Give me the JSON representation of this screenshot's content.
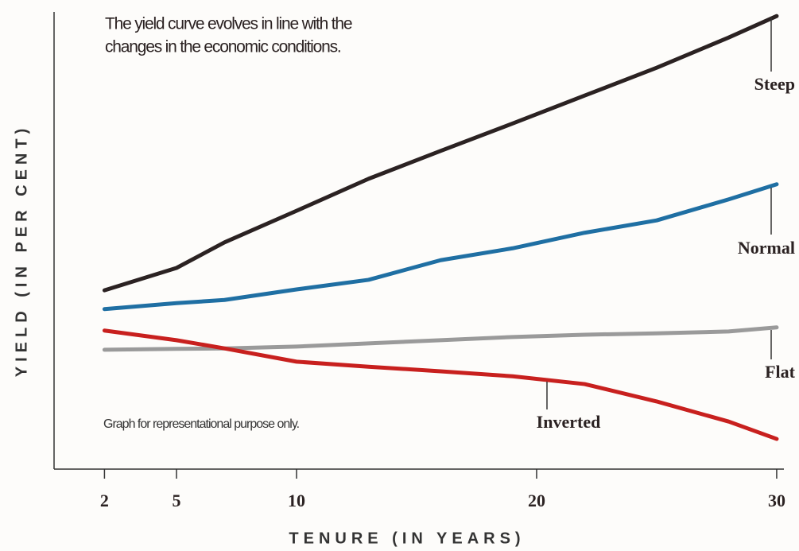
{
  "chart_data": {
    "type": "line",
    "annotations": [
      "The yield curve evolves in line with the",
      "changes in the economic conditions.",
      "Graph for representational purpose only."
    ],
    "xlabel": "TENURE (IN YEARS)",
    "ylabel": "YIELD (IN PER CENT)",
    "x": [
      2,
      5,
      7,
      10,
      13,
      16,
      19,
      22,
      25,
      28,
      30
    ],
    "xlim": [
      -0.1,
      30.3
    ],
    "xticks": [
      2,
      5,
      10,
      20,
      30
    ],
    "ylim": [
      0,
      100
    ],
    "series": [
      {
        "name": "Steep",
        "color": "#2b2222",
        "values": [
          39.1,
          44,
          49.6,
          56.5,
          63.5,
          69.6,
          75.6,
          81.7,
          87.8,
          94.4,
          99.1
        ]
      },
      {
        "name": "Normal",
        "color": "#1f6fa3",
        "values": [
          35,
          36.3,
          37,
          39.3,
          41.4,
          45.7,
          48.3,
          51.7,
          54.4,
          59,
          62.3
        ]
      },
      {
        "name": "Flat",
        "color": "#9a9a9a",
        "values": [
          26.1,
          26.3,
          26.4,
          26.8,
          27.5,
          28.2,
          28.9,
          29.4,
          29.7,
          30.1,
          31
        ]
      },
      {
        "name": "Inverted",
        "color": "#c8201e",
        "values": [
          30.3,
          28.2,
          26.4,
          23.5,
          22.4,
          21.4,
          20.3,
          18.6,
          14.8,
          10.4,
          6.6
        ]
      }
    ]
  }
}
